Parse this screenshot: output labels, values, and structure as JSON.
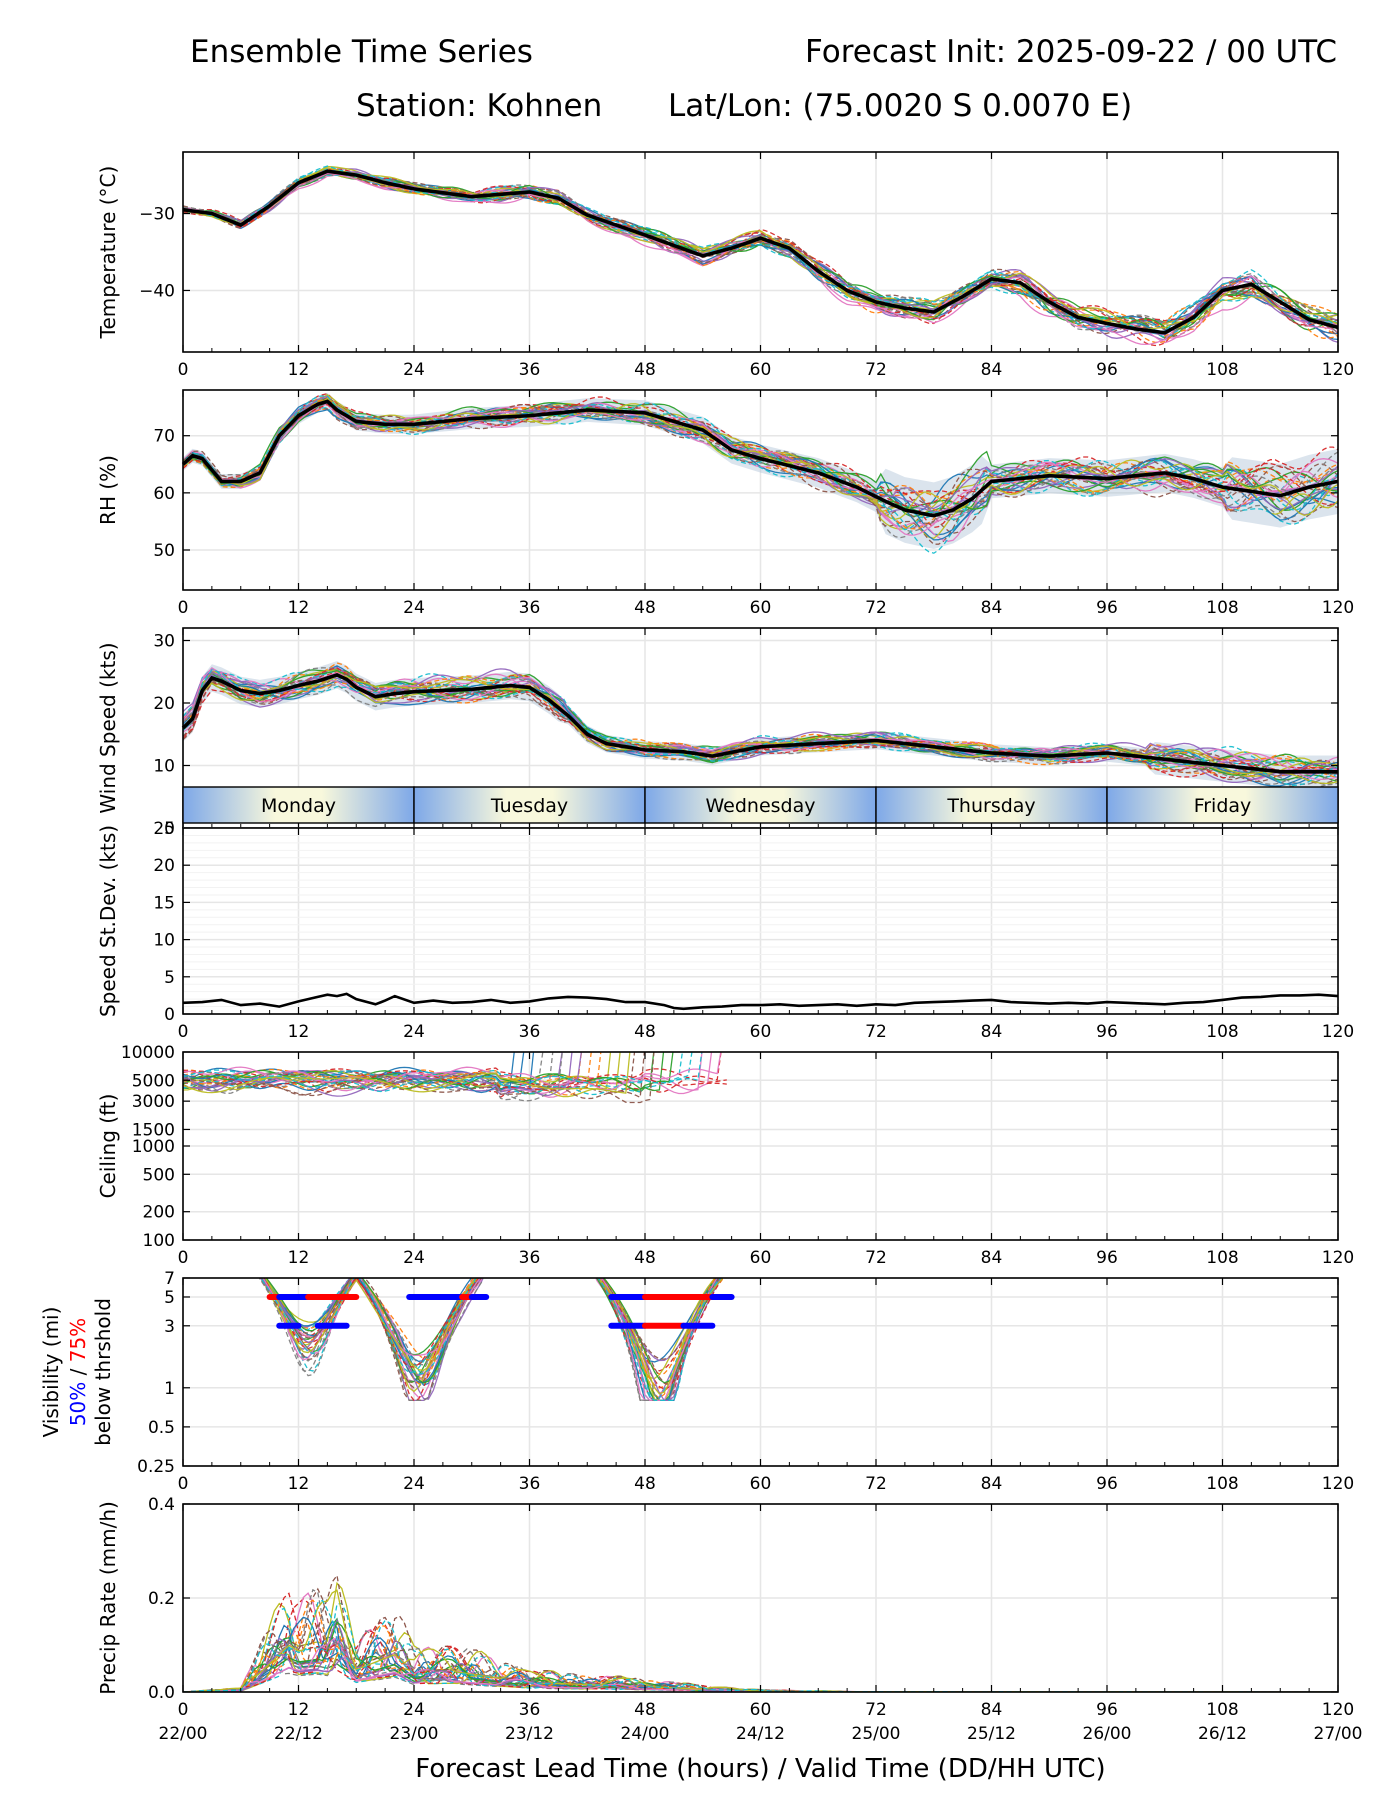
{
  "header": {
    "title_left": "Ensemble Time Series",
    "title_right": "Forecast Init: 2025-09-22 / 00 UTC",
    "station": "Station: Kohnen",
    "latlon": "Lat/Lon: (75.0020 S 0.0070 E)"
  },
  "x_axis": {
    "xlabel": "Forecast Lead Time (hours) / Valid Time (DD/HH UTC)",
    "xlim": [
      0,
      120
    ],
    "ticks": [
      0,
      12,
      24,
      36,
      48,
      60,
      72,
      84,
      96,
      108,
      120
    ],
    "tick_labels": [
      "0",
      "12",
      "24",
      "36",
      "48",
      "60",
      "72",
      "84",
      "96",
      "108",
      "120"
    ],
    "valid_time_labels": [
      "22/00",
      "22/12",
      "23/00",
      "23/12",
      "24/00",
      "24/12",
      "25/00",
      "25/12",
      "26/00",
      "26/12",
      "27/00"
    ]
  },
  "day_bar": {
    "days": [
      "Monday",
      "Tuesday",
      "Wednesday",
      "Thursday",
      "Friday"
    ],
    "gradient_edge": "#7ea8e8",
    "gradient_center": "#f8f8dc"
  },
  "colors": {
    "mean_line": "#000000",
    "threshold_50": "#0000ff",
    "threshold_75": "#ff0000",
    "grid": "#e6e6e6",
    "spread_fill": "#b0c4d8",
    "member_palette": [
      "#1f77b4",
      "#ff7f0e",
      "#2ca02c",
      "#d62728",
      "#9467bd",
      "#8c564b",
      "#e377c2",
      "#7f7f7f",
      "#bcbd22",
      "#17becf"
    ]
  },
  "chart_data": [
    {
      "id": "temperature",
      "type": "line",
      "ylabel": "Temperature (°C)",
      "ylim": [
        -48,
        -22
      ],
      "yticks": [
        -30,
        -40
      ],
      "ytick_labels": [
        "−30",
        "−40"
      ],
      "ensemble_members": 30,
      "mean": {
        "x": [
          0,
          3,
          6,
          9,
          12,
          15,
          18,
          21,
          24,
          30,
          36,
          39,
          42,
          45,
          48,
          54,
          57,
          60,
          63,
          66,
          69,
          72,
          75,
          78,
          81,
          84,
          87,
          90,
          93,
          96,
          99,
          102,
          105,
          108,
          111,
          114,
          117,
          120
        ],
        "y": [
          -29.5,
          -30,
          -31.5,
          -29,
          -26,
          -24.5,
          -25,
          -26,
          -26.8,
          -27.8,
          -27.2,
          -28,
          -30.2,
          -31.5,
          -32.8,
          -35.5,
          -34.5,
          -33.2,
          -34.5,
          -37.5,
          -40,
          -41.5,
          -42.3,
          -42.8,
          -40.8,
          -38.5,
          -39,
          -41.5,
          -43.5,
          -44.3,
          -45,
          -45.5,
          -43.5,
          -40,
          -39.2,
          -41.5,
          -43.8,
          -44.8
        ]
      }
    },
    {
      "id": "rh",
      "type": "line",
      "ylabel": "RH (%)",
      "ylim": [
        43,
        78
      ],
      "yticks": [
        50,
        60,
        70
      ],
      "ytick_labels": [
        "50",
        "60",
        "70"
      ],
      "ensemble_members": 30,
      "mean": {
        "x": [
          0,
          1,
          2,
          3,
          4,
          6,
          8,
          10,
          12,
          14,
          15,
          16,
          18,
          21,
          24,
          30,
          36,
          42,
          48,
          54,
          57,
          60,
          66,
          70,
          73,
          75,
          78,
          80,
          82,
          84,
          90,
          96,
          102,
          105,
          108,
          110,
          114,
          117,
          120
        ],
        "y": [
          65,
          66.5,
          66,
          64,
          62,
          62,
          63.5,
          70,
          73.5,
          75.5,
          76,
          74.5,
          72.5,
          72,
          72,
          73,
          73.5,
          74.5,
          74,
          71,
          67.5,
          66,
          63.5,
          61,
          58.5,
          57,
          56,
          57,
          59,
          62,
          63,
          62.5,
          63.5,
          62.5,
          61,
          60.5,
          59.5,
          61,
          62
        ]
      }
    },
    {
      "id": "wind_speed",
      "type": "line",
      "ylabel": "Wind Speed (kts)",
      "ylim": [
        0,
        32
      ],
      "yticks": [
        0,
        10,
        20,
        30
      ],
      "ytick_labels": [
        "0",
        "10",
        "20",
        "30"
      ],
      "ensemble_members": 30,
      "mean": {
        "x": [
          0,
          1,
          2,
          3,
          4,
          6,
          8,
          10,
          12,
          14,
          16,
          17,
          18,
          20,
          22,
          24,
          30,
          34,
          36,
          38,
          40,
          42,
          44,
          48,
          52,
          55,
          60,
          66,
          72,
          78,
          84,
          90,
          96,
          102,
          108,
          114,
          120
        ],
        "y": [
          16,
          17.5,
          22,
          24,
          23.5,
          22,
          21.5,
          22,
          22.8,
          23.5,
          24.5,
          23.8,
          22.5,
          21,
          21.5,
          21.8,
          22.2,
          22.8,
          22.5,
          20.5,
          18,
          15,
          13.5,
          12.5,
          12.2,
          11.5,
          13,
          13.5,
          14,
          13,
          12,
          11.5,
          12,
          11,
          10,
          9,
          9
        ]
      }
    },
    {
      "id": "speed_stdev",
      "type": "line",
      "ylabel": "Speed St.Dev. (kts)",
      "ylim": [
        0,
        25
      ],
      "yticks": [
        0,
        5,
        10,
        15,
        20,
        25
      ],
      "ytick_labels": [
        "0",
        "5",
        "10",
        "15",
        "20",
        "25"
      ],
      "series": [
        {
          "name": "St.Dev.",
          "x": [
            0,
            2,
            4,
            6,
            8,
            10,
            12,
            14,
            15,
            16,
            17,
            18,
            20,
            21,
            22,
            24,
            26,
            28,
            30,
            32,
            34,
            36,
            38,
            40,
            42,
            44,
            46,
            48,
            50,
            51,
            52,
            54,
            56,
            58,
            60,
            62,
            64,
            66,
            68,
            70,
            72,
            74,
            76,
            78,
            80,
            82,
            84,
            86,
            88,
            90,
            92,
            94,
            96,
            98,
            100,
            102,
            104,
            106,
            108,
            110,
            112,
            114,
            116,
            118,
            120
          ],
          "y": [
            1.5,
            1.6,
            1.9,
            1.2,
            1.4,
            1.0,
            1.7,
            2.3,
            2.6,
            2.4,
            2.7,
            2.0,
            1.3,
            1.8,
            2.4,
            1.5,
            1.8,
            1.5,
            1.6,
            1.9,
            1.5,
            1.7,
            2.1,
            2.3,
            2.2,
            2.0,
            1.6,
            1.6,
            1.2,
            0.8,
            0.7,
            0.9,
            1.0,
            1.2,
            1.2,
            1.3,
            1.1,
            1.2,
            1.3,
            1.1,
            1.3,
            1.2,
            1.5,
            1.6,
            1.7,
            1.8,
            1.9,
            1.6,
            1.5,
            1.4,
            1.5,
            1.4,
            1.6,
            1.5,
            1.4,
            1.3,
            1.5,
            1.6,
            1.9,
            2.2,
            2.3,
            2.5,
            2.5,
            2.6,
            2.4
          ]
        }
      ]
    },
    {
      "id": "ceiling",
      "type": "line",
      "scale": "log",
      "ylabel": "Ceiling (ft)",
      "ylim": [
        100,
        10000
      ],
      "yticks": [
        100,
        200,
        500,
        1000,
        1500,
        3000,
        5000,
        10000
      ],
      "ytick_labels": [
        "100",
        "200",
        "500",
        "1000",
        "1500",
        "3000",
        "5000",
        "10000"
      ],
      "ensemble_members": 30,
      "typical_range": {
        "x": [
          0,
          48
        ],
        "y": [
          3000,
          10000
        ]
      }
    },
    {
      "id": "visibility",
      "type": "line",
      "scale": "log",
      "ylabel": "Visibility (mi)",
      "ylabel_50": "50%",
      "ylabel_sep": " / ",
      "ylabel_75": "75%",
      "ylabel_2": "below thrshold",
      "ylim": [
        0.25,
        7
      ],
      "yticks": [
        0.25,
        0.5,
        1,
        3,
        5,
        7
      ],
      "ytick_labels": [
        "0.25",
        "0.5",
        "1",
        "3",
        "5",
        "7"
      ],
      "ensemble_members": 30,
      "threshold_bars": [
        {
          "threshold": 5,
          "x": [
            9,
            18
          ],
          "segments": [
            {
              "x": [
                9,
                10
              ],
              "color": "#ff0000"
            },
            {
              "x": [
                10,
                13
              ],
              "color": "#0000ff"
            },
            {
              "x": [
                13,
                18
              ],
              "color": "#ff0000"
            }
          ]
        },
        {
          "threshold": 3,
          "x": [
            10,
            17
          ],
          "segments": [
            {
              "x": [
                10,
                12
              ],
              "color": "#0000ff"
            },
            {
              "x": [
                14,
                17
              ],
              "color": "#0000ff"
            }
          ]
        },
        {
          "threshold": 5,
          "x": [
            23.5,
            31.5
          ],
          "segments": [
            {
              "x": [
                23.5,
                29
              ],
              "color": "#0000ff"
            },
            {
              "x": [
                29,
                30
              ],
              "color": "#ff0000"
            },
            {
              "x": [
                30,
                31.5
              ],
              "color": "#0000ff"
            }
          ]
        },
        {
          "threshold": 5,
          "x": [
            44.5,
            57
          ],
          "segments": [
            {
              "x": [
                44.5,
                48
              ],
              "color": "#0000ff"
            },
            {
              "x": [
                48,
                55
              ],
              "color": "#ff0000"
            },
            {
              "x": [
                55,
                57
              ],
              "color": "#0000ff"
            }
          ]
        },
        {
          "threshold": 3,
          "x": [
            44.5,
            55
          ],
          "segments": [
            {
              "x": [
                44.5,
                48
              ],
              "color": "#0000ff"
            },
            {
              "x": [
                48,
                52
              ],
              "color": "#ff0000"
            },
            {
              "x": [
                52,
                55
              ],
              "color": "#0000ff"
            }
          ]
        }
      ]
    },
    {
      "id": "precip",
      "type": "line",
      "ylabel": "Precip Rate (mm/h)",
      "ylim": [
        0,
        0.4
      ],
      "yticks": [
        0.0,
        0.2,
        0.4
      ],
      "ytick_labels": [
        "0.0",
        "0.2",
        "0.4"
      ],
      "ensemble_members": 30,
      "peak_envelope": {
        "x": [
          0,
          6,
          9,
          11,
          12,
          14,
          15,
          16,
          18,
          22,
          24,
          28,
          32,
          36,
          42,
          48,
          54,
          60,
          70,
          120
        ],
        "y": [
          0,
          0.01,
          0.15,
          0.25,
          0.22,
          0.24,
          0.22,
          0.26,
          0.12,
          0.2,
          0.1,
          0.11,
          0.08,
          0.05,
          0.04,
          0.03,
          0.015,
          0.005,
          0.001,
          0
        ]
      }
    }
  ]
}
